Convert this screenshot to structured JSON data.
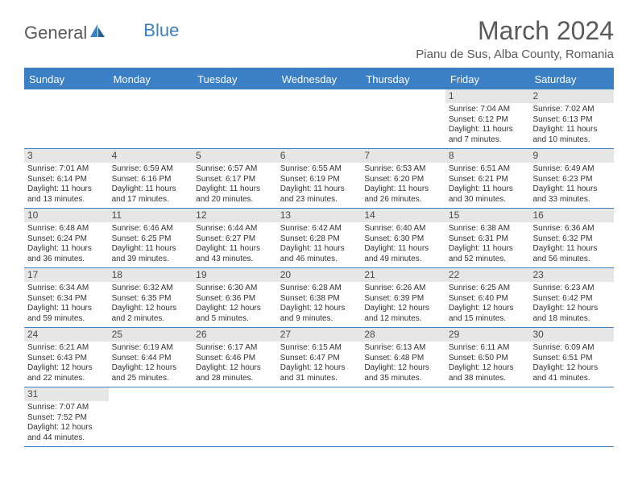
{
  "logo": {
    "text1": "General",
    "text2": "Blue"
  },
  "title": "March 2024",
  "location": "Pianu de Sus, Alba County, Romania",
  "colors": {
    "header_bg": "#3b7fc4",
    "header_text": "#ffffff",
    "daynum_bg": "#e6e6e6",
    "text": "#333333",
    "border": "#3b7fc4"
  },
  "typography": {
    "title_fontsize": 32,
    "location_fontsize": 15,
    "dayheader_fontsize": 13,
    "cell_fontsize": 10
  },
  "dayNames": [
    "Sunday",
    "Monday",
    "Tuesday",
    "Wednesday",
    "Thursday",
    "Friday",
    "Saturday"
  ],
  "weeks": [
    [
      null,
      null,
      null,
      null,
      null,
      {
        "n": "1",
        "sr": "Sunrise: 7:04 AM",
        "ss": "Sunset: 6:12 PM",
        "dl": "Daylight: 11 hours and 7 minutes."
      },
      {
        "n": "2",
        "sr": "Sunrise: 7:02 AM",
        "ss": "Sunset: 6:13 PM",
        "dl": "Daylight: 11 hours and 10 minutes."
      }
    ],
    [
      {
        "n": "3",
        "sr": "Sunrise: 7:01 AM",
        "ss": "Sunset: 6:14 PM",
        "dl": "Daylight: 11 hours and 13 minutes."
      },
      {
        "n": "4",
        "sr": "Sunrise: 6:59 AM",
        "ss": "Sunset: 6:16 PM",
        "dl": "Daylight: 11 hours and 17 minutes."
      },
      {
        "n": "5",
        "sr": "Sunrise: 6:57 AM",
        "ss": "Sunset: 6:17 PM",
        "dl": "Daylight: 11 hours and 20 minutes."
      },
      {
        "n": "6",
        "sr": "Sunrise: 6:55 AM",
        "ss": "Sunset: 6:19 PM",
        "dl": "Daylight: 11 hours and 23 minutes."
      },
      {
        "n": "7",
        "sr": "Sunrise: 6:53 AM",
        "ss": "Sunset: 6:20 PM",
        "dl": "Daylight: 11 hours and 26 minutes."
      },
      {
        "n": "8",
        "sr": "Sunrise: 6:51 AM",
        "ss": "Sunset: 6:21 PM",
        "dl": "Daylight: 11 hours and 30 minutes."
      },
      {
        "n": "9",
        "sr": "Sunrise: 6:49 AM",
        "ss": "Sunset: 6:23 PM",
        "dl": "Daylight: 11 hours and 33 minutes."
      }
    ],
    [
      {
        "n": "10",
        "sr": "Sunrise: 6:48 AM",
        "ss": "Sunset: 6:24 PM",
        "dl": "Daylight: 11 hours and 36 minutes."
      },
      {
        "n": "11",
        "sr": "Sunrise: 6:46 AM",
        "ss": "Sunset: 6:25 PM",
        "dl": "Daylight: 11 hours and 39 minutes."
      },
      {
        "n": "12",
        "sr": "Sunrise: 6:44 AM",
        "ss": "Sunset: 6:27 PM",
        "dl": "Daylight: 11 hours and 43 minutes."
      },
      {
        "n": "13",
        "sr": "Sunrise: 6:42 AM",
        "ss": "Sunset: 6:28 PM",
        "dl": "Daylight: 11 hours and 46 minutes."
      },
      {
        "n": "14",
        "sr": "Sunrise: 6:40 AM",
        "ss": "Sunset: 6:30 PM",
        "dl": "Daylight: 11 hours and 49 minutes."
      },
      {
        "n": "15",
        "sr": "Sunrise: 6:38 AM",
        "ss": "Sunset: 6:31 PM",
        "dl": "Daylight: 11 hours and 52 minutes."
      },
      {
        "n": "16",
        "sr": "Sunrise: 6:36 AM",
        "ss": "Sunset: 6:32 PM",
        "dl": "Daylight: 11 hours and 56 minutes."
      }
    ],
    [
      {
        "n": "17",
        "sr": "Sunrise: 6:34 AM",
        "ss": "Sunset: 6:34 PM",
        "dl": "Daylight: 11 hours and 59 minutes."
      },
      {
        "n": "18",
        "sr": "Sunrise: 6:32 AM",
        "ss": "Sunset: 6:35 PM",
        "dl": "Daylight: 12 hours and 2 minutes."
      },
      {
        "n": "19",
        "sr": "Sunrise: 6:30 AM",
        "ss": "Sunset: 6:36 PM",
        "dl": "Daylight: 12 hours and 5 minutes."
      },
      {
        "n": "20",
        "sr": "Sunrise: 6:28 AM",
        "ss": "Sunset: 6:38 PM",
        "dl": "Daylight: 12 hours and 9 minutes."
      },
      {
        "n": "21",
        "sr": "Sunrise: 6:26 AM",
        "ss": "Sunset: 6:39 PM",
        "dl": "Daylight: 12 hours and 12 minutes."
      },
      {
        "n": "22",
        "sr": "Sunrise: 6:25 AM",
        "ss": "Sunset: 6:40 PM",
        "dl": "Daylight: 12 hours and 15 minutes."
      },
      {
        "n": "23",
        "sr": "Sunrise: 6:23 AM",
        "ss": "Sunset: 6:42 PM",
        "dl": "Daylight: 12 hours and 18 minutes."
      }
    ],
    [
      {
        "n": "24",
        "sr": "Sunrise: 6:21 AM",
        "ss": "Sunset: 6:43 PM",
        "dl": "Daylight: 12 hours and 22 minutes."
      },
      {
        "n": "25",
        "sr": "Sunrise: 6:19 AM",
        "ss": "Sunset: 6:44 PM",
        "dl": "Daylight: 12 hours and 25 minutes."
      },
      {
        "n": "26",
        "sr": "Sunrise: 6:17 AM",
        "ss": "Sunset: 6:46 PM",
        "dl": "Daylight: 12 hours and 28 minutes."
      },
      {
        "n": "27",
        "sr": "Sunrise: 6:15 AM",
        "ss": "Sunset: 6:47 PM",
        "dl": "Daylight: 12 hours and 31 minutes."
      },
      {
        "n": "28",
        "sr": "Sunrise: 6:13 AM",
        "ss": "Sunset: 6:48 PM",
        "dl": "Daylight: 12 hours and 35 minutes."
      },
      {
        "n": "29",
        "sr": "Sunrise: 6:11 AM",
        "ss": "Sunset: 6:50 PM",
        "dl": "Daylight: 12 hours and 38 minutes."
      },
      {
        "n": "30",
        "sr": "Sunrise: 6:09 AM",
        "ss": "Sunset: 6:51 PM",
        "dl": "Daylight: 12 hours and 41 minutes."
      }
    ],
    [
      {
        "n": "31",
        "sr": "Sunrise: 7:07 AM",
        "ss": "Sunset: 7:52 PM",
        "dl": "Daylight: 12 hours and 44 minutes."
      },
      null,
      null,
      null,
      null,
      null,
      null
    ]
  ]
}
